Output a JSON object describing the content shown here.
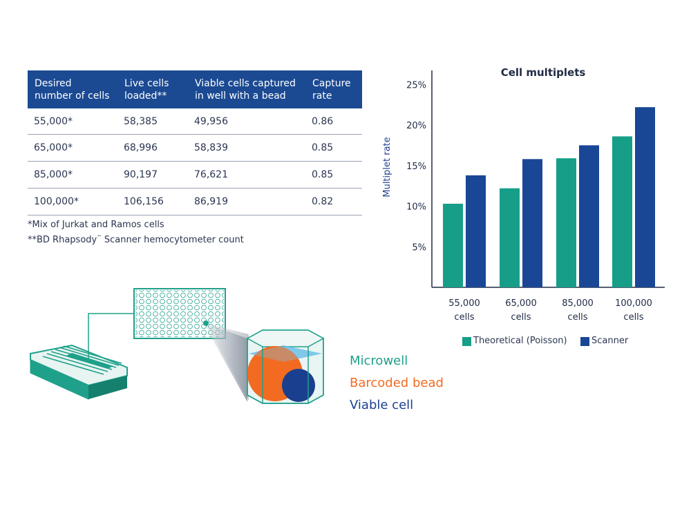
{
  "table": {
    "headers": [
      "Desired\nnumber of cells",
      "Live cells\nloaded**",
      "Viable cells captured\nin well with a bead",
      "Capture\nrate"
    ],
    "rows": [
      [
        "55,000*",
        "58,385",
        "49,956",
        "0.86"
      ],
      [
        "65,000*",
        "68,996",
        "58,839",
        "0.85"
      ],
      [
        "85,000*",
        "90,197",
        "76,621",
        "0.85"
      ],
      [
        "100,000*",
        "106,156",
        "86,919",
        "0.82"
      ]
    ],
    "footnote1": "*Mix of Jurkat and Ramos cells",
    "footnote2": "**BD Rhapsody¨ Scanner hemocytometer count"
  },
  "diagram": {
    "labels": {
      "microwell": "Microwell",
      "bead": "Barcoded bead",
      "cell": "Viable cell"
    },
    "colors": {
      "microwell": "#1fa08a",
      "bead": "#f26b21",
      "cell": "#1b3f8f"
    }
  },
  "colors": {
    "theoretical": "#169e88",
    "scanner": "#1a4696",
    "header": "#1b4a93",
    "axis": "#1f2a44"
  },
  "chart_data": {
    "type": "bar",
    "title": "Cell multiplets",
    "ylabel": "Multiplet rate",
    "xlabel": "",
    "categories": [
      "55,000\ncells",
      "65,000\ncells",
      "85,000\ncells",
      "100,000\ncells"
    ],
    "yticks": [
      5,
      10,
      15,
      20,
      25
    ],
    "ytick_labels": [
      "5%",
      "10%",
      "15%",
      "20%",
      "25%"
    ],
    "ylim": [
      0,
      26
    ],
    "series": [
      {
        "name": "Theoretical (Poisson)",
        "values": [
          10.3,
          12.2,
          15.9,
          18.6
        ]
      },
      {
        "name": "Scanner",
        "values": [
          13.8,
          15.8,
          17.5,
          22.2
        ]
      }
    ],
    "legend_position": "bottom"
  }
}
